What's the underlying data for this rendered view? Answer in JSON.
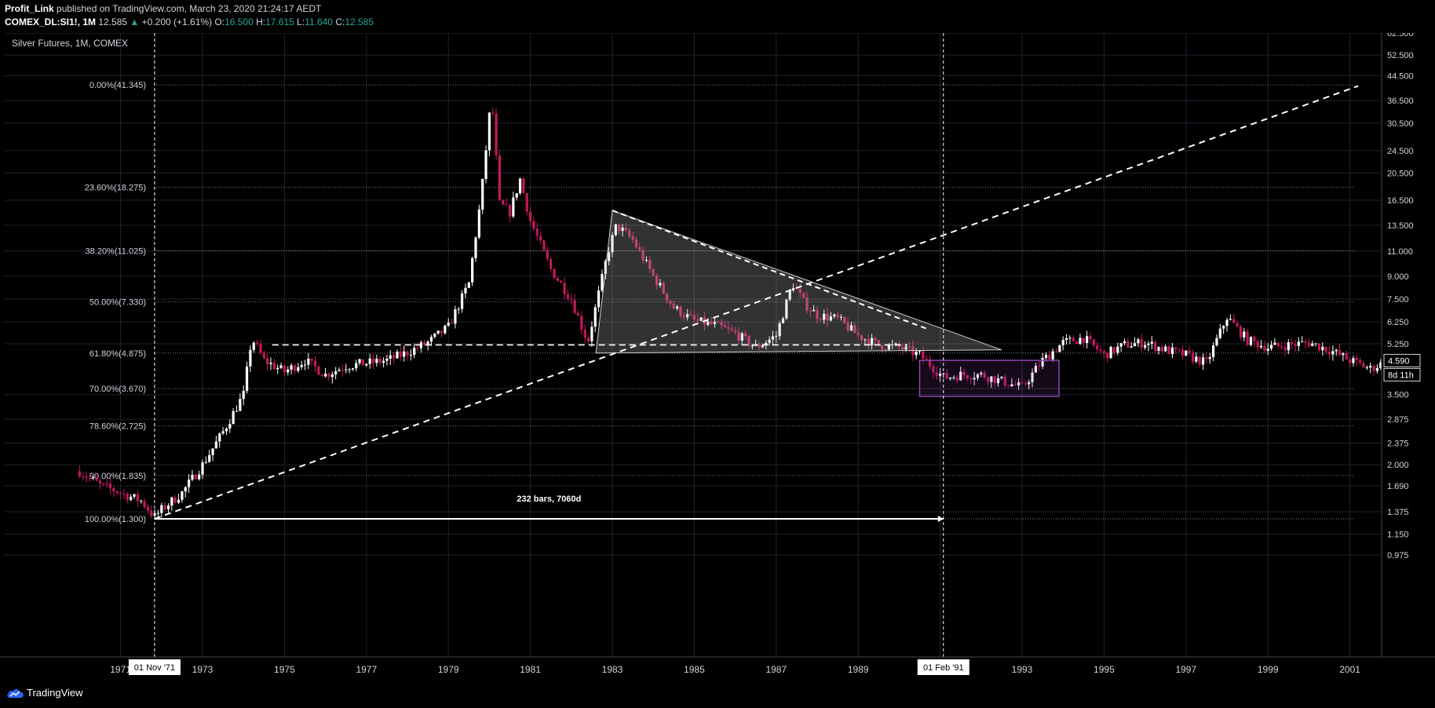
{
  "header": {
    "author": "Profit_Link",
    "published_text": "published on TradingView.com, March 23, 2020 21:24:17 AEDT",
    "symbol": "COMEX_DL:SI1!, 1M",
    "last": "12.585",
    "change": "+0.200 (+1.61%)",
    "open_label": "O:",
    "open": "16.500",
    "high_label": "H:",
    "high": "17.615",
    "low_label": "L:",
    "low": "11.640",
    "close_label": "C:",
    "close": "12.585"
  },
  "footer": {
    "brand": "TradingView",
    "logo_icon": "tradingview-cloud-icon"
  },
  "chart_data": {
    "type": "candlestick",
    "title": "Silver Futures, 1M, COMEX",
    "y_scale": "log",
    "ylim": [
      0.86,
      64
    ],
    "x_ticks": [
      "1971",
      "1973",
      "1975",
      "1977",
      "1979",
      "1981",
      "1983",
      "1985",
      "1987",
      "1989",
      "1991",
      "1993",
      "1995",
      "1997",
      "1999",
      "2001"
    ],
    "y_ticks": [
      "62.500",
      "52.500",
      "44.500",
      "36.500",
      "30.500",
      "24.500",
      "20.500",
      "16.500",
      "13.500",
      "11.000",
      "9.000",
      "7.500",
      "6.250",
      "5.250",
      "3.500",
      "2.875",
      "2.375",
      "2.000",
      "1.690",
      "1.375",
      "1.150",
      "0.975"
    ],
    "price_label": "4.590",
    "countdown_label": "8d 11h",
    "crosshair_x_labels": [
      "01 Nov '71",
      "01 Feb '91"
    ],
    "measure_label": "232 bars, 7060d",
    "fib_levels": [
      {
        "label": "0.00%(41.345)",
        "price": 41.345
      },
      {
        "label": "23.60%(18.275)",
        "price": 18.275
      },
      {
        "label": "38.20%(11.025)",
        "price": 11.025
      },
      {
        "label": "50.00%(7.330)",
        "price": 7.33
      },
      {
        "label": "61.80%(4.875)",
        "price": 4.875
      },
      {
        "label": "70.00%(3.670)",
        "price": 3.67
      },
      {
        "label": "78.60%(2.725)",
        "price": 2.725
      },
      {
        "label": "90.00%(1.835)",
        "price": 1.835
      },
      {
        "label": "100.00%(1.300)",
        "price": 1.3
      }
    ],
    "monthly_close_approx": [
      [
        1970.0,
        1.9
      ],
      [
        1970.5,
        1.7
      ],
      [
        1971.0,
        1.6
      ],
      [
        1971.5,
        1.5
      ],
      [
        1971.83,
        1.32
      ],
      [
        1972.0,
        1.4
      ],
      [
        1972.5,
        1.6
      ],
      [
        1973.0,
        2.0
      ],
      [
        1973.5,
        2.6
      ],
      [
        1974.0,
        3.5
      ],
      [
        1974.2,
        5.5
      ],
      [
        1974.5,
        4.6
      ],
      [
        1975.0,
        4.2
      ],
      [
        1975.5,
        4.6
      ],
      [
        1976.0,
        4.1
      ],
      [
        1976.5,
        4.4
      ],
      [
        1977.0,
        4.5
      ],
      [
        1977.5,
        4.6
      ],
      [
        1978.0,
        4.9
      ],
      [
        1978.5,
        5.3
      ],
      [
        1979.0,
        6.0
      ],
      [
        1979.5,
        8.5
      ],
      [
        1979.8,
        17.0
      ],
      [
        1980.05,
        38.0
      ],
      [
        1980.25,
        16.0
      ],
      [
        1980.5,
        15.0
      ],
      [
        1980.75,
        19.5
      ],
      [
        1981.0,
        14.0
      ],
      [
        1981.5,
        9.5
      ],
      [
        1982.0,
        7.5
      ],
      [
        1982.4,
        5.3
      ],
      [
        1982.9,
        11.0
      ],
      [
        1983.1,
        13.5
      ],
      [
        1983.5,
        12.0
      ],
      [
        1984.0,
        9.0
      ],
      [
        1984.5,
        7.0
      ],
      [
        1985.0,
        6.3
      ],
      [
        1985.5,
        6.1
      ],
      [
        1986.0,
        5.7
      ],
      [
        1986.5,
        5.1
      ],
      [
        1987.0,
        5.6
      ],
      [
        1987.4,
        8.5
      ],
      [
        1987.7,
        7.2
      ],
      [
        1988.0,
        6.6
      ],
      [
        1988.5,
        6.4
      ],
      [
        1989.0,
        5.6
      ],
      [
        1989.5,
        5.2
      ],
      [
        1990.0,
        5.1
      ],
      [
        1990.5,
        4.8
      ],
      [
        1991.1,
        4.0
      ],
      [
        1991.5,
        4.1
      ],
      [
        1992.0,
        4.1
      ],
      [
        1992.5,
        3.9
      ],
      [
        1993.0,
        3.7
      ],
      [
        1993.5,
        4.6
      ],
      [
        1994.0,
        5.3
      ],
      [
        1994.5,
        5.5
      ],
      [
        1995.0,
        4.8
      ],
      [
        1995.5,
        5.2
      ],
      [
        1996.0,
        5.3
      ],
      [
        1996.5,
        5.0
      ],
      [
        1997.0,
        4.8
      ],
      [
        1997.5,
        4.5
      ],
      [
        1998.0,
        6.5
      ],
      [
        1998.5,
        5.4
      ],
      [
        1999.0,
        5.1
      ],
      [
        1999.5,
        5.2
      ],
      [
        2000.0,
        5.3
      ],
      [
        2000.5,
        5.0
      ],
      [
        2001.0,
        4.6
      ],
      [
        2001.5,
        4.3
      ],
      [
        2001.8,
        4.5
      ]
    ],
    "drawings": {
      "trendline_from": [
        1971.83,
        1.3
      ],
      "trendline_to": [
        2001.2,
        41.0
      ],
      "measure_from_date": "01 Nov '71",
      "measure_to_date": "01 Feb '91",
      "triangle": [
        [
          1982.6,
          4.875
        ],
        [
          1983.0,
          15.2
        ],
        [
          1992.5,
          5.0
        ]
      ],
      "horizontal_dashed_price": 5.2,
      "range_box": {
        "x0": 1990.5,
        "x1": 1993.9,
        "p0": 3.45,
        "p1": 4.6,
        "color": "#8e44ad"
      }
    }
  }
}
